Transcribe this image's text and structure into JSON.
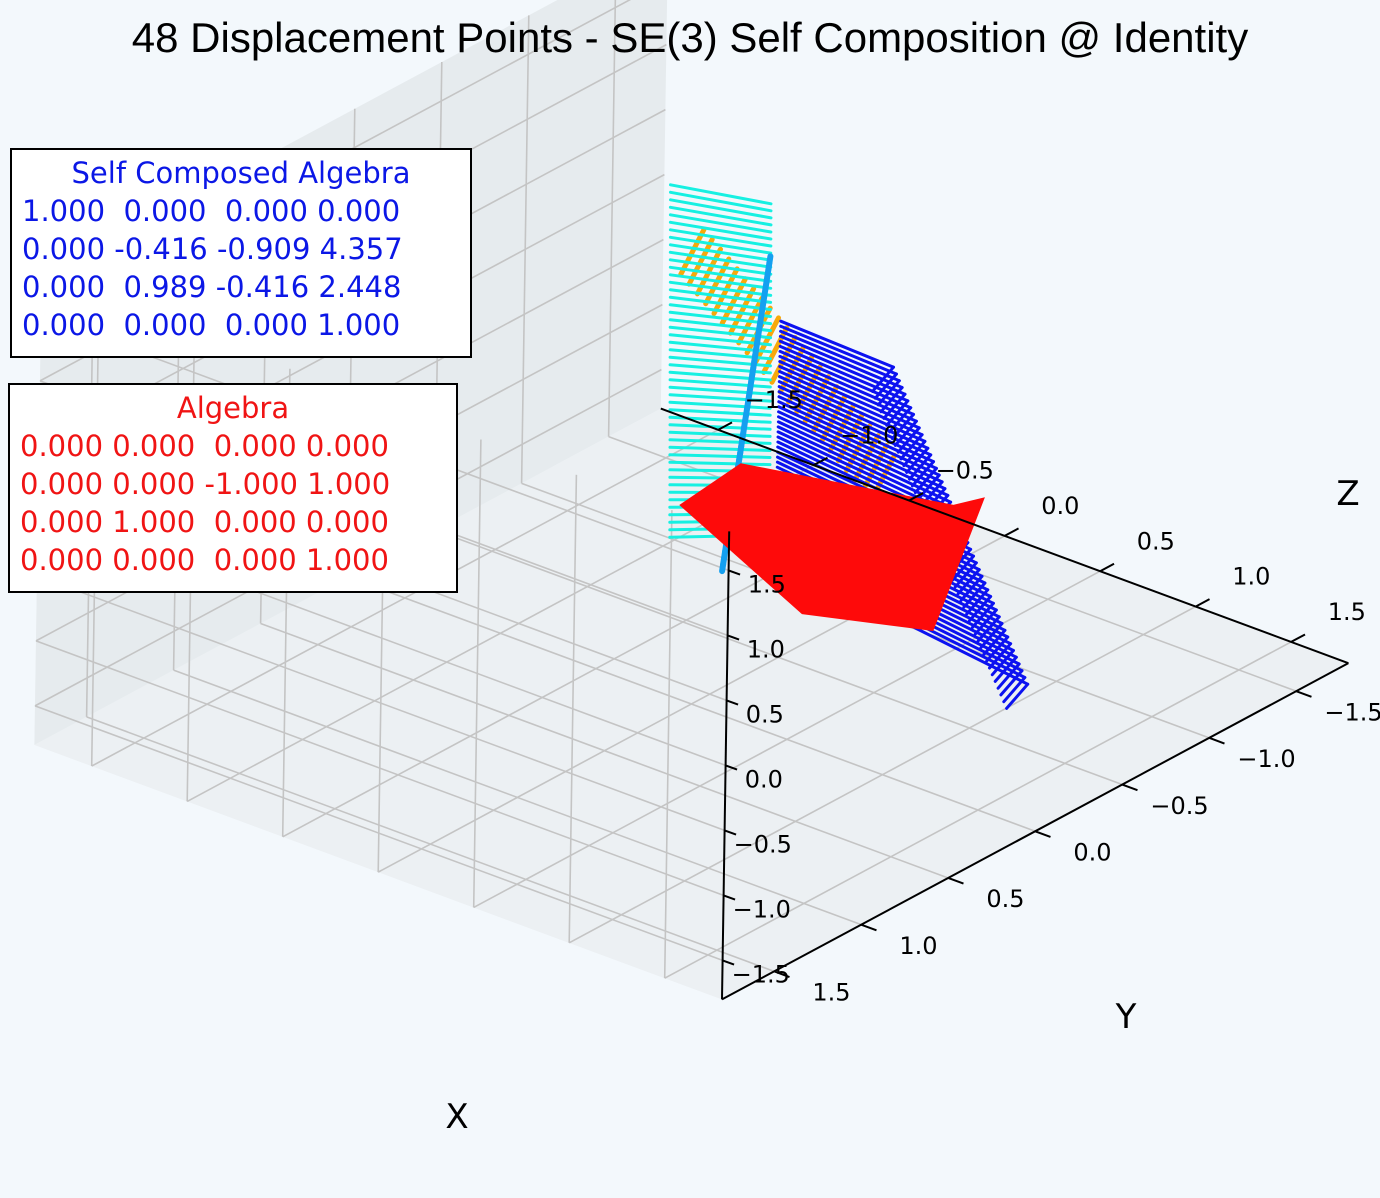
{
  "title": "48 Displacement Points - SE(3) Self Composition @ Identity",
  "axes": {
    "x_label": "X",
    "y_label": "Y",
    "z_label": "Z",
    "x_ticks": [
      "−1.5",
      "−1.0",
      "−0.5",
      "0.0",
      "0.5",
      "1.0",
      "1.5"
    ],
    "y_ticks": [
      "−1.5",
      "−1.0",
      "−0.5",
      "0.0",
      "0.5",
      "1.0",
      "1.5"
    ],
    "z_ticks": [
      "−1.5",
      "−1.0",
      "−0.5",
      "0.0",
      "0.5",
      "1.0",
      "1.5"
    ]
  },
  "self_composed": {
    "title": "Self Composed Algebra",
    "rows": [
      "1.000  0.000  0.000 0.000",
      "0.000 -0.416 -0.909 4.357",
      "0.000  0.989 -0.416 2.448",
      "0.000  0.000  0.000 1.000"
    ]
  },
  "algebra": {
    "title": "Algebra",
    "rows": [
      "0.000 0.000  0.000 0.000",
      "0.000 0.000 -1.000 1.000",
      "0.000 1.000  0.000 0.000",
      "0.000 0.000  0.000 1.000"
    ]
  },
  "colors": {
    "self_text": "#0b17e6",
    "algebra_text": "#f01414",
    "cyan": "#16f0e2",
    "sky": "#14a0f0",
    "blue": "#0c12f0",
    "orange": "#f7a90a",
    "red": "#fe0a0a",
    "pane": "#e9eef2",
    "grid": "#c4c4c4"
  },
  "chart_data": {
    "type": "scatter",
    "title": "48 Displacement Points - SE(3) Self Composition @ Identity",
    "xlabel": "X",
    "ylabel": "Y",
    "zlabel": "Z",
    "xlim": [
      -1.8,
      1.8
    ],
    "ylim": [
      -1.8,
      1.8
    ],
    "zlim": [
      -1.8,
      1.8
    ],
    "x_ticks": [
      -1.5,
      -1.0,
      -0.5,
      0.0,
      0.5,
      1.0,
      1.5
    ],
    "y_ticks": [
      -1.5,
      -1.0,
      -0.5,
      0.0,
      0.5,
      1.0,
      1.5
    ],
    "z_ticks": [
      -1.5,
      -1.0,
      -0.5,
      0.0,
      0.5,
      1.0,
      1.5
    ],
    "grid": true,
    "points": 48
  }
}
